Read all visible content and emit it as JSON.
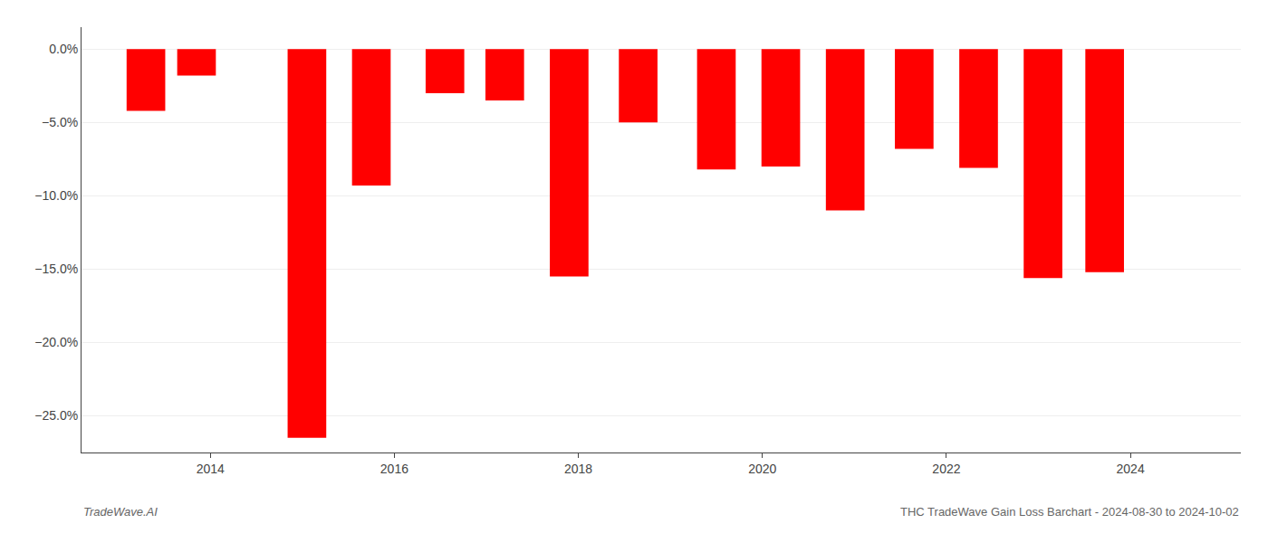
{
  "chart_data": {
    "type": "bar",
    "title": "THC TradeWave Gain Loss Barchart - 2024-08-30 to 2024-10-02",
    "annotations": [
      "TradeWave.AI"
    ],
    "x": [
      2013.3,
      2013.85,
      2015.05,
      2015.75,
      2016.55,
      2017.2,
      2017.9,
      2018.65,
      2019.5,
      2020.2,
      2020.9,
      2021.65,
      2022.35,
      2023.05,
      2023.72
    ],
    "values": [
      -4.2,
      -1.8,
      -26.5,
      -9.3,
      -3.0,
      -3.5,
      -15.5,
      -5.0,
      -8.2,
      -8.0,
      -11.0,
      -6.8,
      -8.1,
      -15.6,
      -15.2
    ],
    "color": "#ff0000",
    "xlim": [
      2012.6,
      2025.2
    ],
    "xticks": [
      2014,
      2016,
      2018,
      2020,
      2022,
      2024
    ],
    "ylim": [
      -27.5,
      1.5
    ],
    "yticks": [
      {
        "value": 0.0,
        "label": "0.0%"
      },
      {
        "value": -5.0,
        "label": "−5.0%"
      },
      {
        "value": -10.0,
        "label": "−10.0%"
      },
      {
        "value": -15.0,
        "label": "−15.0%"
      },
      {
        "value": -20.0,
        "label": "−20.0%"
      },
      {
        "value": -25.0,
        "label": "−25.0%"
      }
    ],
    "grid": true
  }
}
